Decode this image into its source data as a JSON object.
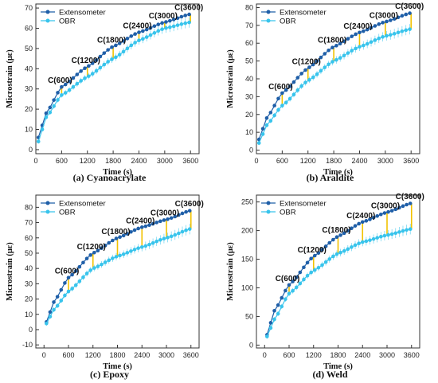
{
  "colors": {
    "extensometer": "#1f5fa8",
    "obr": "#38c4ec",
    "connector": "#f2c200",
    "axis": "#333333"
  },
  "chart_data": [
    {
      "type": "line",
      "caption": "(a) Cyanoacrylate",
      "xlabel": "Time (s)",
      "ylabel": "Microstrain (με)",
      "xlim": [
        0,
        3800
      ],
      "ylim": [
        -2,
        72
      ],
      "xticks": [
        0,
        600,
        1200,
        1800,
        2400,
        3000,
        3600
      ],
      "yticks": [
        0,
        10,
        20,
        30,
        40,
        50,
        60,
        70
      ],
      "legend": "top-left",
      "grid": false,
      "series": [
        {
          "name": "Extensometer",
          "x": [
            60,
            240,
            600,
            1200,
            1800,
            2400,
            3000,
            3600
          ],
          "y": [
            6,
            18,
            31,
            41,
            51,
            58,
            63,
            67
          ]
        },
        {
          "name": "OBR",
          "x": [
            60,
            240,
            600,
            1200,
            1800,
            2400,
            3000,
            3600
          ],
          "y": [
            4,
            16,
            27,
            36,
            45,
            54,
            60,
            63
          ]
        }
      ],
      "annotations": [
        {
          "text": "C(600)",
          "x": 600,
          "y1": 31,
          "y2": 27
        },
        {
          "text": "C(1200)",
          "x": 1200,
          "y1": 41,
          "y2": 36
        },
        {
          "text": "C(1800)",
          "x": 1800,
          "y1": 51,
          "y2": 45
        },
        {
          "text": "C(2400)",
          "x": 2400,
          "y1": 58,
          "y2": 54
        },
        {
          "text": "C(3000)",
          "x": 3000,
          "y1": 63,
          "y2": 60
        },
        {
          "text": "C(3600)",
          "x": 3600,
          "y1": 67,
          "y2": 63
        }
      ]
    },
    {
      "type": "line",
      "caption": "(b) Araldite",
      "xlabel": "Time (s)",
      "ylabel": "Microstrain (με)",
      "xlim": [
        0,
        3800
      ],
      "ylim": [
        -2,
        82
      ],
      "xticks": [
        0,
        600,
        1200,
        1800,
        2400,
        3000,
        3600
      ],
      "yticks": [
        0,
        10,
        20,
        30,
        40,
        50,
        60,
        70,
        80
      ],
      "legend": "top-left",
      "grid": false,
      "series": [
        {
          "name": "Extensometer",
          "x": [
            60,
            240,
            600,
            1200,
            1800,
            2400,
            3000,
            3600
          ],
          "y": [
            6,
            18,
            32,
            46,
            58,
            66,
            72,
            77
          ]
        },
        {
          "name": "OBR",
          "x": [
            60,
            240,
            600,
            1200,
            1800,
            2400,
            3000,
            3600
          ],
          "y": [
            4,
            14,
            25,
            39,
            50,
            58,
            64,
            68
          ]
        }
      ],
      "annotations": [
        {
          "text": "C(600)",
          "x": 600,
          "y1": 32,
          "y2": 25
        },
        {
          "text": "C(1200)",
          "x": 1200,
          "y1": 46,
          "y2": 39
        },
        {
          "text": "C(1800)",
          "x": 1800,
          "y1": 58,
          "y2": 50
        },
        {
          "text": "C(2400)",
          "x": 2400,
          "y1": 66,
          "y2": 58
        },
        {
          "text": "C(3000)",
          "x": 3000,
          "y1": 72,
          "y2": 64
        },
        {
          "text": "C(3600)",
          "x": 3600,
          "y1": 77,
          "y2": 68
        }
      ]
    },
    {
      "type": "line",
      "caption": "(c) Epoxy",
      "xlabel": "Time (s)",
      "ylabel": "Microstrain (με)",
      "xlim": [
        -200,
        3800
      ],
      "ylim": [
        -12,
        88
      ],
      "xticks": [
        0,
        600,
        1200,
        1800,
        2400,
        3000,
        3600
      ],
      "yticks": [
        -10,
        0,
        10,
        20,
        30,
        40,
        50,
        60,
        70,
        80
      ],
      "legend": "top-left",
      "grid": false,
      "series": [
        {
          "name": "Extensometer",
          "x": [
            60,
            240,
            600,
            1200,
            1800,
            2400,
            3000,
            3600
          ],
          "y": [
            5,
            18,
            34,
            50,
            60,
            67,
            72,
            78
          ]
        },
        {
          "name": "OBR",
          "x": [
            60,
            240,
            600,
            1200,
            1800,
            2400,
            3000,
            3600
          ],
          "y": [
            4,
            13,
            25,
            40,
            48,
            54,
            60,
            66
          ]
        }
      ],
      "annotations": [
        {
          "text": "C(600)",
          "x": 600,
          "y1": 34,
          "y2": 25
        },
        {
          "text": "C(1200)",
          "x": 1200,
          "y1": 50,
          "y2": 40
        },
        {
          "text": "C(1800)",
          "x": 1800,
          "y1": 60,
          "y2": 48
        },
        {
          "text": "C(2400)",
          "x": 2400,
          "y1": 67,
          "y2": 54
        },
        {
          "text": "C(3000)",
          "x": 3000,
          "y1": 72,
          "y2": 60
        },
        {
          "text": "C(3600)",
          "x": 3600,
          "y1": 78,
          "y2": 66
        }
      ]
    },
    {
      "type": "line",
      "caption": "(d) Weld",
      "xlabel": "Time (s)",
      "ylabel": "Microstrain (με)",
      "xlim": [
        -200,
        3800
      ],
      "ylim": [
        -5,
        262
      ],
      "xticks": [
        0,
        600,
        1200,
        1800,
        2400,
        3000,
        3600
      ],
      "yticks": [
        0,
        50,
        100,
        150,
        200,
        250
      ],
      "legend": "top-left",
      "grid": false,
      "series": [
        {
          "name": "Extensometer",
          "x": [
            60,
            240,
            600,
            1200,
            1800,
            2400,
            3000,
            3600
          ],
          "y": [
            18,
            60,
            105,
            155,
            190,
            215,
            232,
            248
          ]
        },
        {
          "name": "OBR",
          "x": [
            60,
            240,
            600,
            1200,
            1800,
            2400,
            3000,
            3600
          ],
          "y": [
            15,
            45,
            90,
            130,
            160,
            180,
            192,
            203
          ]
        }
      ],
      "annotations": [
        {
          "text": "C(600)",
          "x": 600,
          "y1": 105,
          "y2": 90
        },
        {
          "text": "C(1200)",
          "x": 1200,
          "y1": 155,
          "y2": 130
        },
        {
          "text": "C(1800)",
          "x": 1800,
          "y1": 190,
          "y2": 160
        },
        {
          "text": "C(2400)",
          "x": 2400,
          "y1": 215,
          "y2": 180
        },
        {
          "text": "C(3000)",
          "x": 3000,
          "y1": 232,
          "y2": 192
        },
        {
          "text": "C(3600)",
          "x": 3600,
          "y1": 248,
          "y2": 203
        }
      ]
    }
  ]
}
